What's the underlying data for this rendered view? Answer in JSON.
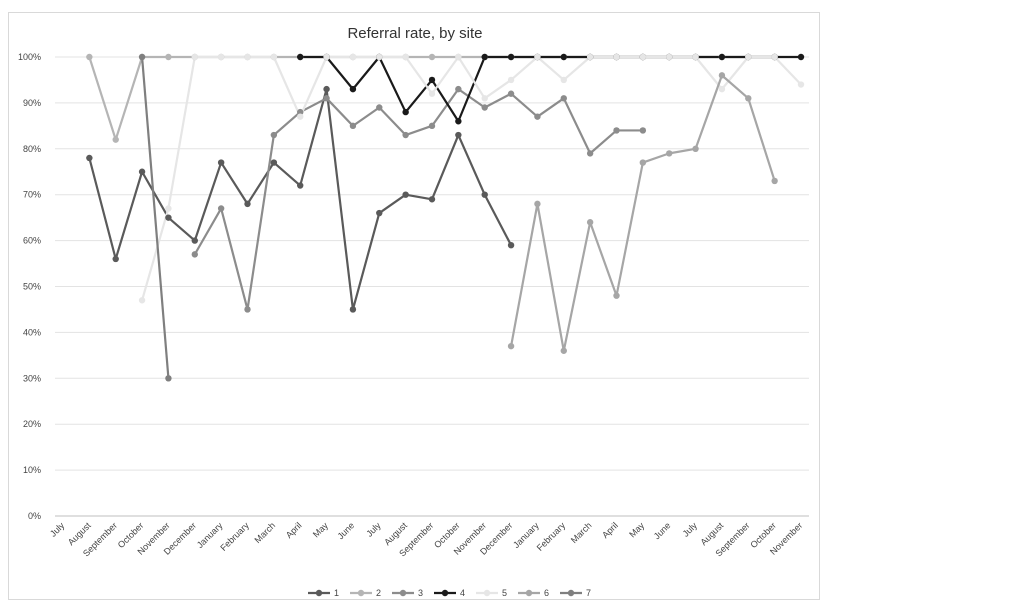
{
  "chart_data": {
    "type": "line",
    "title": "Referral rate, by site",
    "xlabel": "",
    "ylabel": "",
    "ylim": [
      0,
      100
    ],
    "y_ticks": [
      "0%",
      "10%",
      "20%",
      "30%",
      "40%",
      "50%",
      "60%",
      "70%",
      "80%",
      "90%",
      "100%"
    ],
    "categories": [
      "July",
      "August",
      "September",
      "October",
      "November",
      "December",
      "January",
      "February",
      "March",
      "April",
      "May",
      "June",
      "July",
      "August",
      "September",
      "October",
      "November",
      "December",
      "January",
      "February",
      "March",
      "April",
      "May",
      "June",
      "July",
      "August",
      "September",
      "October",
      "November"
    ],
    "grid": "horizontal",
    "legend_position": "bottom",
    "series": [
      {
        "name": "1",
        "color": "#5a5a5a",
        "values": [
          null,
          78,
          56,
          75,
          65,
          60,
          77,
          68,
          77,
          72,
          93,
          45,
          66,
          70,
          69,
          83,
          70,
          59,
          null,
          null,
          null,
          null,
          null,
          null,
          null,
          null,
          null,
          null,
          null
        ]
      },
      {
        "name": "2",
        "color": "#b5b5b5",
        "values": [
          null,
          100,
          82,
          100,
          100,
          100,
          100,
          100,
          100,
          100,
          100,
          100,
          100,
          100,
          100,
          100,
          100,
          100,
          100,
          100,
          100,
          100,
          100,
          100,
          100,
          100,
          100,
          100,
          null
        ]
      },
      {
        "name": "3",
        "color": "#8c8c8c",
        "values": [
          null,
          null,
          null,
          null,
          null,
          57,
          67,
          45,
          83,
          88,
          91,
          85,
          89,
          83,
          85,
          93,
          89,
          92,
          87,
          91,
          79,
          84,
          84,
          null,
          null,
          null,
          null,
          null,
          null
        ]
      },
      {
        "name": "4",
        "color": "#1a1a1a",
        "values": [
          null,
          null,
          null,
          null,
          null,
          null,
          null,
          null,
          null,
          100,
          100,
          93,
          100,
          88,
          95,
          86,
          100,
          100,
          100,
          100,
          100,
          100,
          100,
          100,
          100,
          100,
          100,
          100,
          100
        ]
      },
      {
        "name": "5",
        "color": "#e6e6e6",
        "values": [
          null,
          null,
          null,
          47,
          67,
          100,
          100,
          100,
          100,
          87,
          100,
          100,
          100,
          100,
          92,
          100,
          91,
          95,
          100,
          95,
          100,
          100,
          100,
          100,
          100,
          93,
          100,
          100,
          94
        ]
      },
      {
        "name": "6",
        "color": "#a6a6a6",
        "values": [
          null,
          null,
          null,
          null,
          null,
          null,
          null,
          null,
          null,
          null,
          null,
          null,
          null,
          null,
          null,
          null,
          null,
          37,
          68,
          36,
          64,
          48,
          77,
          79,
          80,
          96,
          91,
          73,
          null
        ]
      },
      {
        "name": "7",
        "color": "#7f7f7f",
        "values": [
          null,
          null,
          null,
          100,
          30,
          null,
          null,
          null,
          null,
          null,
          null,
          null,
          null,
          null,
          null,
          null,
          null,
          null,
          null,
          null,
          null,
          null,
          null,
          null,
          null,
          null,
          null,
          null,
          null
        ]
      }
    ]
  }
}
